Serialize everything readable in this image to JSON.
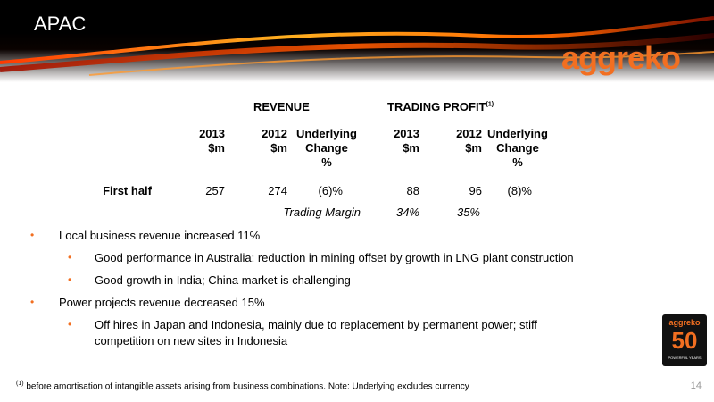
{
  "header": {
    "title": "APAC",
    "logo_text": "aggreko"
  },
  "table": {
    "revenue_heading": "REVENUE",
    "profit_heading": "TRADING PROFIT",
    "profit_note_marker": "(1)",
    "columns": [
      {
        "l1": "2013",
        "l2": "$m",
        "l3": ""
      },
      {
        "l1": "2012",
        "l2": "$m",
        "l3": ""
      },
      {
        "l1": "Underlying",
        "l2": "Change",
        "l3": "%"
      },
      {
        "l1": "2013",
        "l2": "$m",
        "l3": ""
      },
      {
        "l1": "2012",
        "l2": "$m",
        "l3": ""
      },
      {
        "l1": "Underlying",
        "l2": "Change",
        "l3": "%"
      }
    ],
    "row": {
      "label": "First half",
      "values": [
        "257",
        "274",
        "(6)%",
        "88",
        "96",
        "(8)%"
      ]
    },
    "margin": {
      "label": "Trading Margin",
      "v2013": "34%",
      "v2012": "35%"
    }
  },
  "bullets": [
    {
      "text": "Local business revenue increased 11%",
      "level": 1
    },
    {
      "text": "Good performance in Australia: reduction in mining offset by growth in LNG plant construction",
      "level": 2
    },
    {
      "text": "Good growth in India; China market is challenging",
      "level": 2
    },
    {
      "text": "Power projects revenue decreased 15%",
      "level": 1
    },
    {
      "text_l1": "Off hires in Japan and Indonesia, mainly due to replacement by permanent power; stiff",
      "text_l2": "competition on new sites in Indonesia",
      "level": 2
    }
  ],
  "bullet_glyph": "•",
  "footnote": {
    "marker": "(1)",
    "text": "before amortisation of intangible assets arising from business combinations. Note: Underlying excludes currency"
  },
  "page_number": "14",
  "badge": {
    "brand": "aggreko",
    "number": "50",
    "tagline": "POWERFUL YEARS"
  },
  "colors": {
    "accent": "#f26f21",
    "banner": "#000000"
  }
}
